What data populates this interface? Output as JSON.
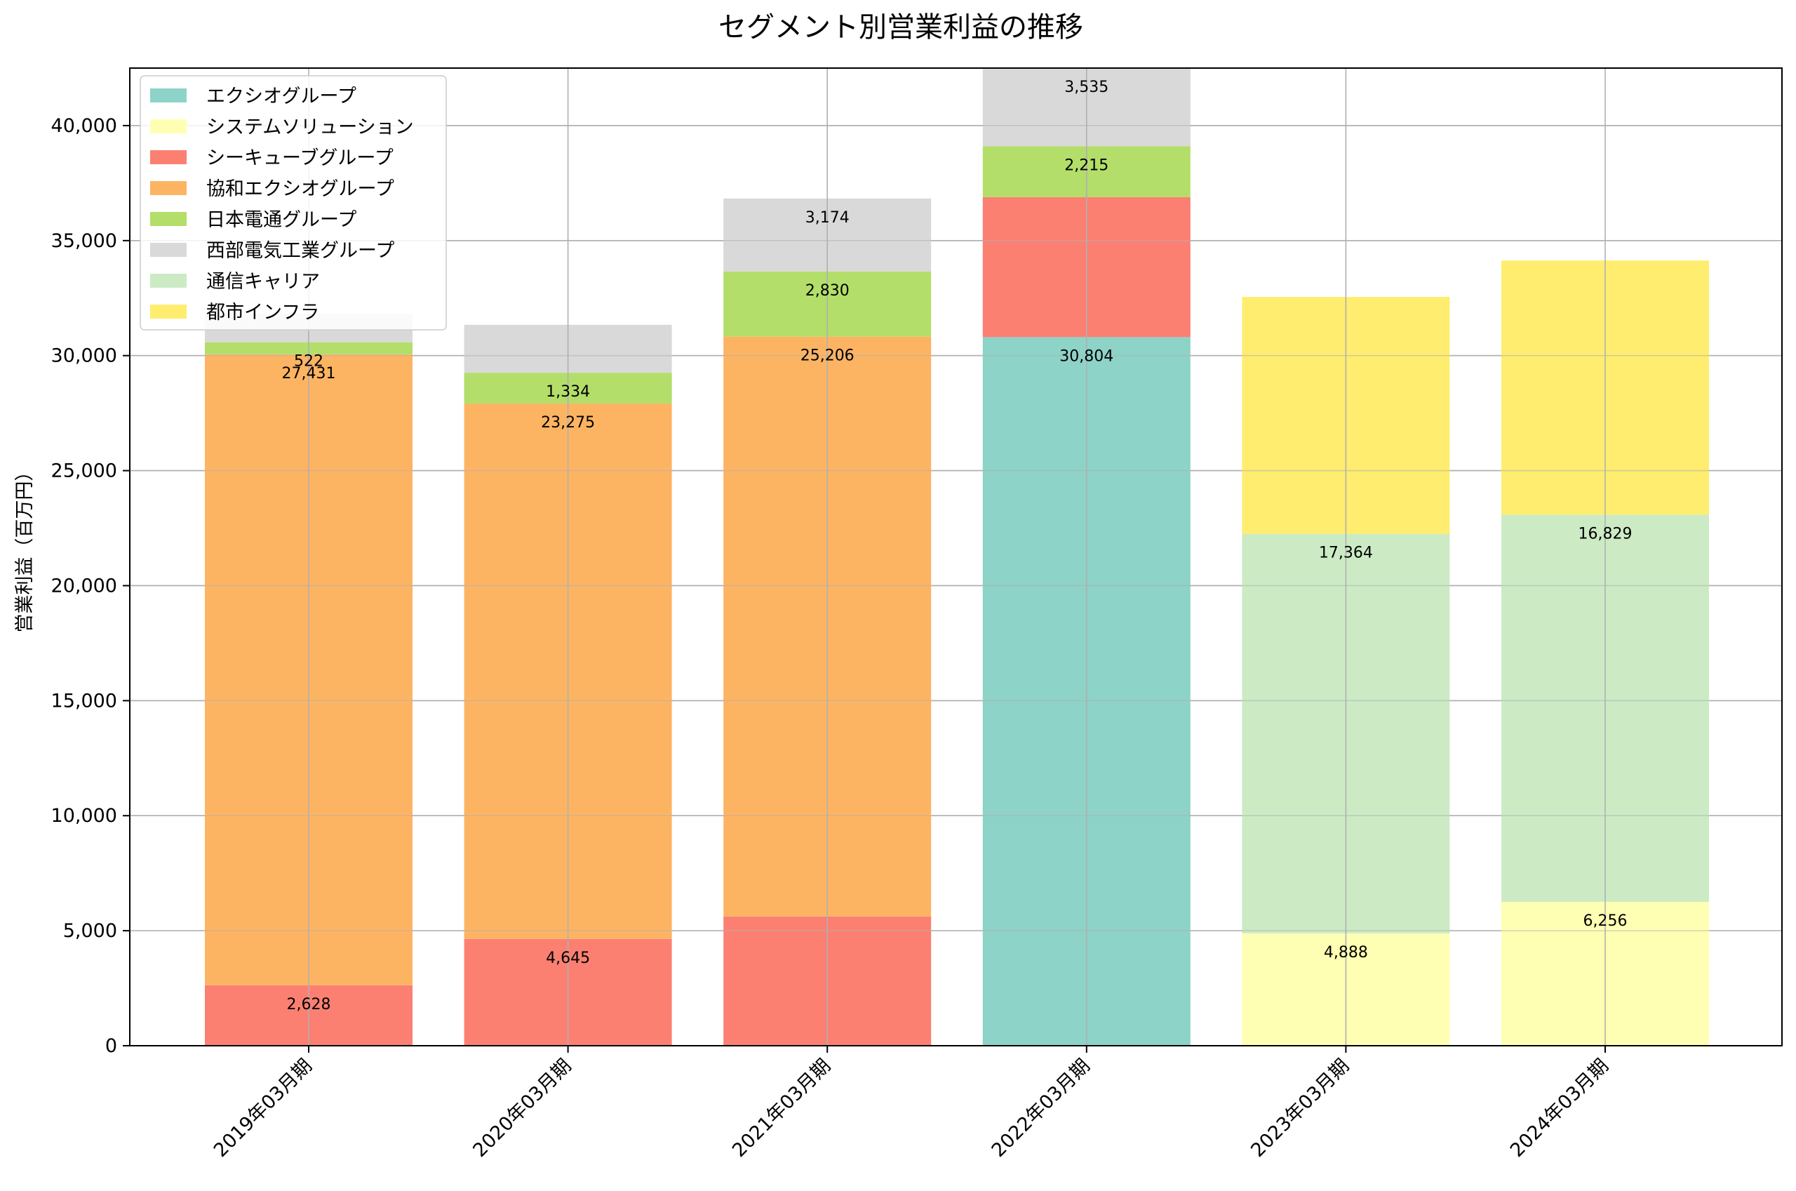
{
  "chart_data": {
    "type": "bar",
    "stacked": true,
    "title": "セグメント別営業利益の推移",
    "xlabel": "",
    "ylabel": "営業利益（百万円）",
    "ylim": [
      0,
      42500
    ],
    "yticks": [
      0,
      5000,
      10000,
      15000,
      20000,
      25000,
      30000,
      35000,
      40000
    ],
    "ytick_labels": [
      "0",
      "5,000",
      "10,000",
      "15,000",
      "20,000",
      "25,000",
      "30,000",
      "35,000",
      "40,000"
    ],
    "grid": true,
    "legend_position": "top-left",
    "categories": [
      "2019年03月期",
      "2020年03月期",
      "2021年03月期",
      "2022年03月期",
      "2023年03月期",
      "2024年03月期"
    ],
    "series": [
      {
        "name": "エクシオグループ",
        "color": "#8dd3c7",
        "values": [
          0,
          0,
          0,
          30804,
          0,
          0
        ]
      },
      {
        "name": "システムソリューション",
        "color": "#ffffb3",
        "values": [
          0,
          0,
          0,
          0,
          4888,
          6256
        ]
      },
      {
        "name": "シーキューブグループ",
        "color": "#fb8072",
        "values": [
          2628,
          4645,
          5620,
          6086,
          0,
          0
        ]
      },
      {
        "name": "協和エクシオグループ",
        "color": "#fdb462",
        "values": [
          27431,
          23275,
          25206,
          0,
          0,
          0
        ]
      },
      {
        "name": "日本電通グループ",
        "color": "#b3de69",
        "values": [
          522,
          1334,
          2830,
          2215,
          0,
          0
        ]
      },
      {
        "name": "西部電気工業グループ",
        "color": "#d9d9d9",
        "values": [
          1250,
          2085,
          3174,
          3535,
          0,
          0
        ]
      },
      {
        "name": "通信キャリア",
        "color": "#ccebc5",
        "values": [
          0,
          0,
          0,
          0,
          17364,
          16829
        ]
      },
      {
        "name": "都市インフラ",
        "color": "#ffed6f",
        "values": [
          0,
          0,
          0,
          0,
          10300,
          11050
        ]
      }
    ],
    "data_labels": [
      {
        "category": 0,
        "series": 2,
        "text": "2,628"
      },
      {
        "category": 0,
        "series": 3,
        "text": "27,431"
      },
      {
        "category": 0,
        "series": 4,
        "text": "522"
      },
      {
        "category": 1,
        "series": 2,
        "text": "4,645"
      },
      {
        "category": 1,
        "series": 3,
        "text": "23,275"
      },
      {
        "category": 1,
        "series": 4,
        "text": "1,334"
      },
      {
        "category": 2,
        "series": 3,
        "text": "25,206"
      },
      {
        "category": 2,
        "series": 4,
        "text": "2,830"
      },
      {
        "category": 2,
        "series": 5,
        "text": "3,174"
      },
      {
        "category": 3,
        "series": 0,
        "text": "30,804"
      },
      {
        "category": 3,
        "series": 4,
        "text": "2,215"
      },
      {
        "category": 3,
        "series": 5,
        "text": "3,535"
      },
      {
        "category": 4,
        "series": 1,
        "text": "4,888"
      },
      {
        "category": 4,
        "series": 6,
        "text": "17,364"
      },
      {
        "category": 5,
        "series": 1,
        "text": "6,256"
      },
      {
        "category": 5,
        "series": 6,
        "text": "16,829"
      }
    ]
  }
}
